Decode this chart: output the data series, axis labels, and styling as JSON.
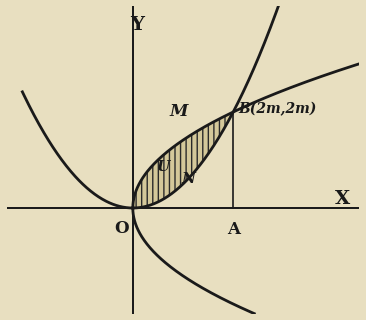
{
  "background_color": "#e8dfc0",
  "m": 1,
  "axis_color": "#1a1a1a",
  "curve_color": "#1a1a1a",
  "curve_lw": 2.0,
  "axis_lw": 1.3,
  "shade_color": "#d4c89a",
  "hatch_color": "#2a2a2a",
  "label_Y": "Y",
  "label_X": "X",
  "label_O": "O",
  "label_A": "A",
  "label_M": "M",
  "label_B": "B(2m,2m)",
  "label_U": "U",
  "label_N": "N",
  "xlim": [
    -2.5,
    4.5
  ],
  "ylim": [
    -2.2,
    4.2
  ],
  "figsize": [
    3.66,
    3.2
  ],
  "dpi": 100
}
